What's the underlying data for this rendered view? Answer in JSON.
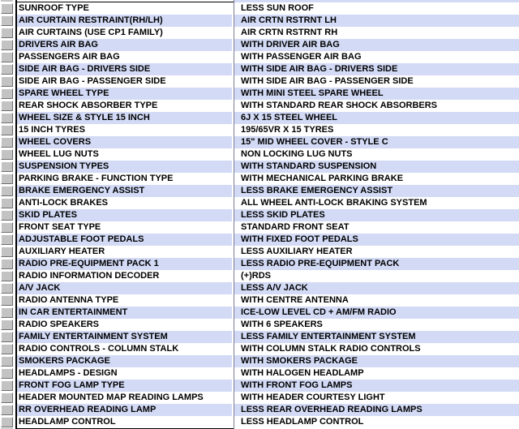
{
  "table": {
    "rows": [
      {
        "feature": "SUNROOF TYPE",
        "value": "LESS SUN ROOF"
      },
      {
        "feature": "AIR CURTAIN RESTRAINT(RH/LH)",
        "value": "AIR CRTN RSTRNT LH"
      },
      {
        "feature": "AIR CURTAINS (USE CP1 FAMILY)",
        "value": "AIR CRTN RSTRNT RH"
      },
      {
        "feature": "DRIVERS AIR BAG",
        "value": "WITH DRIVER AIR BAG"
      },
      {
        "feature": "PASSENGERS AIR BAG",
        "value": "WITH PASSENGER AIR BAG"
      },
      {
        "feature": "SIDE AIR BAG - DRIVERS SIDE",
        "value": "WITH SIDE AIR BAG - DRIVERS SIDE"
      },
      {
        "feature": "SIDE AIR BAG - PASSENGER SIDE",
        "value": "WITH SIDE AIR BAG - PASSENGER SIDE"
      },
      {
        "feature": "SPARE WHEEL TYPE",
        "value": "WITH MINI STEEL SPARE WHEEL"
      },
      {
        "feature": "REAR SHOCK ABSORBER TYPE",
        "value": "WITH STANDARD REAR SHOCK ABSORBERS"
      },
      {
        "feature": "WHEEL SIZE & STYLE 15 INCH",
        "value": "6J X 15 STEEL WHEEL"
      },
      {
        "feature": "15 INCH TYRES",
        "value": "195/65VR X 15 TYRES"
      },
      {
        "feature": "WHEEL COVERS",
        "value": "15\" MID WHEEL COVER - STYLE C"
      },
      {
        "feature": "WHEEL LUG NUTS",
        "value": "NON LOCKING LUG NUTS"
      },
      {
        "feature": "SUSPENSION TYPES",
        "value": "WITH STANDARD SUSPENSION"
      },
      {
        "feature": "PARKING BRAKE - FUNCTION TYPE",
        "value": "WITH MECHANICAL PARKING BRAKE"
      },
      {
        "feature": "BRAKE EMERGENCY ASSIST",
        "value": "LESS BRAKE EMERGENCY ASSIST"
      },
      {
        "feature": "ANTI-LOCK BRAKES",
        "value": "ALL WHEEL ANTI-LOCK BRAKING SYSTEM"
      },
      {
        "feature": "SKID PLATES",
        "value": "LESS SKID PLATES"
      },
      {
        "feature": "FRONT SEAT TYPE",
        "value": "STANDARD FRONT SEAT"
      },
      {
        "feature": "ADJUSTABLE FOOT PEDALS",
        "value": "WITH FIXED FOOT PEDALS"
      },
      {
        "feature": "AUXILIARY HEATER",
        "value": "LESS AUXILIARY HEATER"
      },
      {
        "feature": "RADIO PRE-EQUIPMENT PACK 1",
        "value": "LESS RADIO PRE-EQUIPMENT PACK"
      },
      {
        "feature": "RADIO INFORMATION DECODER",
        "value": "(+)RDS"
      },
      {
        "feature": "A/V JACK",
        "value": "LESS A/V JACK"
      },
      {
        "feature": "RADIO ANTENNA TYPE",
        "value": "WITH CENTRE ANTENNA"
      },
      {
        "feature": "IN CAR ENTERTAINMENT",
        "value": "ICE-LOW LEVEL CD + AM/FM RADIO"
      },
      {
        "feature": "RADIO SPEAKERS",
        "value": "WITH 6 SPEAKERS"
      },
      {
        "feature": "FAMILY ENTERTAINMENT SYSTEM",
        "value": "LESS FAMILY ENTERTAINMENT SYSTEM"
      },
      {
        "feature": "RADIO CONTROLS - COLUMN STALK",
        "value": "WITH COLUMN STALK RADIO CONTROLS"
      },
      {
        "feature": "SMOKERS PACKAGE",
        "value": "WITH SMOKERS PACKAGE"
      },
      {
        "feature": "HEADLAMPS - DESIGN",
        "value": "WITH HALOGEN HEADLAMP"
      },
      {
        "feature": "FRONT FOG LAMP TYPE",
        "value": "WITH FRONT FOG LAMPS"
      },
      {
        "feature": "HEADER MOUNTED MAP READING LAMPS",
        "value": "WITH HEADER COURTESY LIGHT"
      },
      {
        "feature": "RR OVERHEAD READING LAMP",
        "value": "LESS REAR OVERHEAD READING LAMPS"
      },
      {
        "feature": "HEADLAMP CONTROL",
        "value": "LESS HEADLAMP CONTROL"
      }
    ]
  },
  "colors": {
    "row_base": "#ffffff",
    "row_alt": "#d2daf5",
    "header_cell": "#c3c3c3",
    "divider_line": "#7d7d94",
    "border_line": "#000000",
    "text": "#000000"
  }
}
